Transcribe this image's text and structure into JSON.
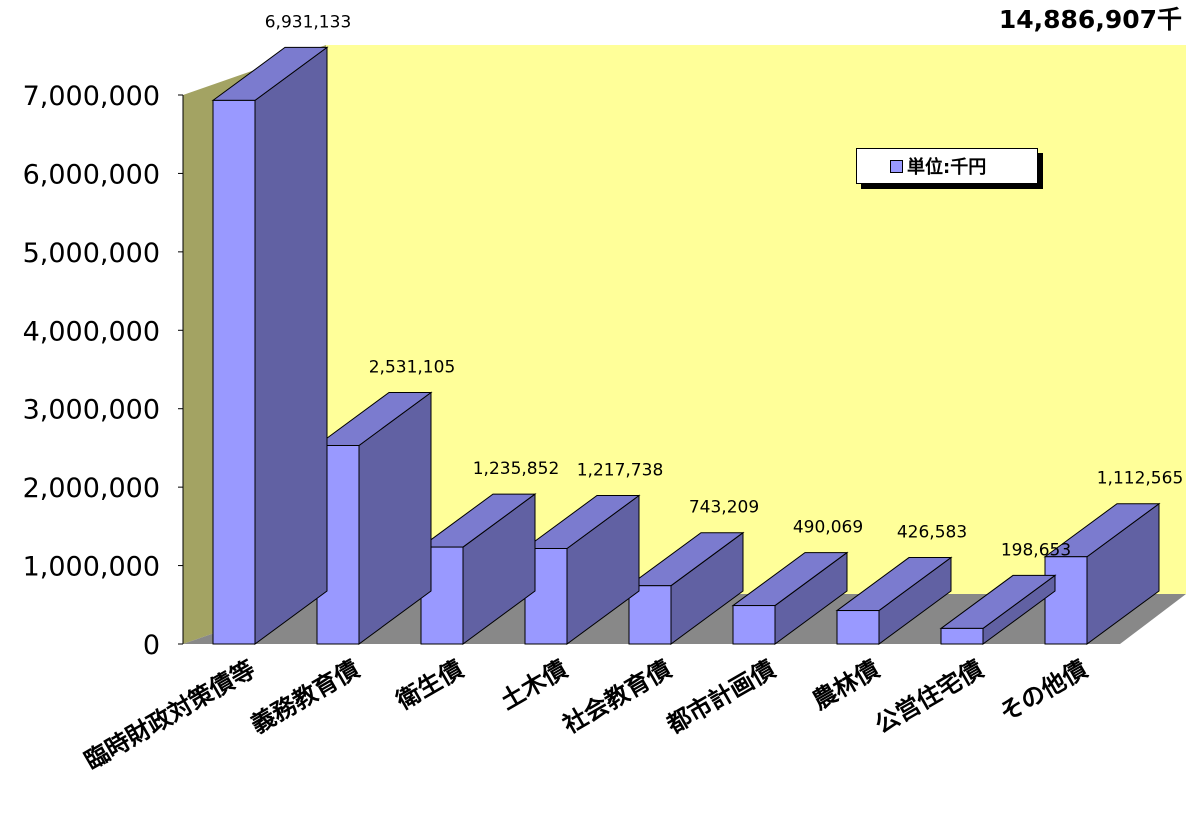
{
  "total_label": "14,886,907千",
  "legend": {
    "label": "単位:千円"
  },
  "colors": {
    "bar_front": "#9999ff",
    "bar_side": "#6161a3",
    "bar_top": "#7b7bcf",
    "back_wall": "#ffff99",
    "side_wall": "#a3a363",
    "floor": "#888888"
  },
  "chart_data": {
    "type": "bar",
    "categories": [
      "臨時財政対策債等",
      "義務教育債",
      "衛生債",
      "土木債",
      "社会教育債",
      "都市計画債",
      "農林債",
      "公営住宅債",
      "その他債"
    ],
    "values": [
      6931133,
      2531105,
      1235852,
      1217738,
      743209,
      490069,
      426583,
      198653,
      1112565
    ],
    "value_labels": [
      "6,931,133",
      "2,531,105",
      "1,235,852",
      "1,217,738",
      "743,209",
      "490,069",
      "426,583",
      "198,653",
      "1,112,565"
    ],
    "yticks": [
      "0",
      "1,000,000",
      "2,000,000",
      "3,000,000",
      "4,000,000",
      "5,000,000",
      "6,000,000",
      "7,000,000"
    ],
    "ylim": [
      0,
      7000000
    ],
    "legend_position": "top-right",
    "title": "",
    "xlabel": "",
    "ylabel": ""
  }
}
